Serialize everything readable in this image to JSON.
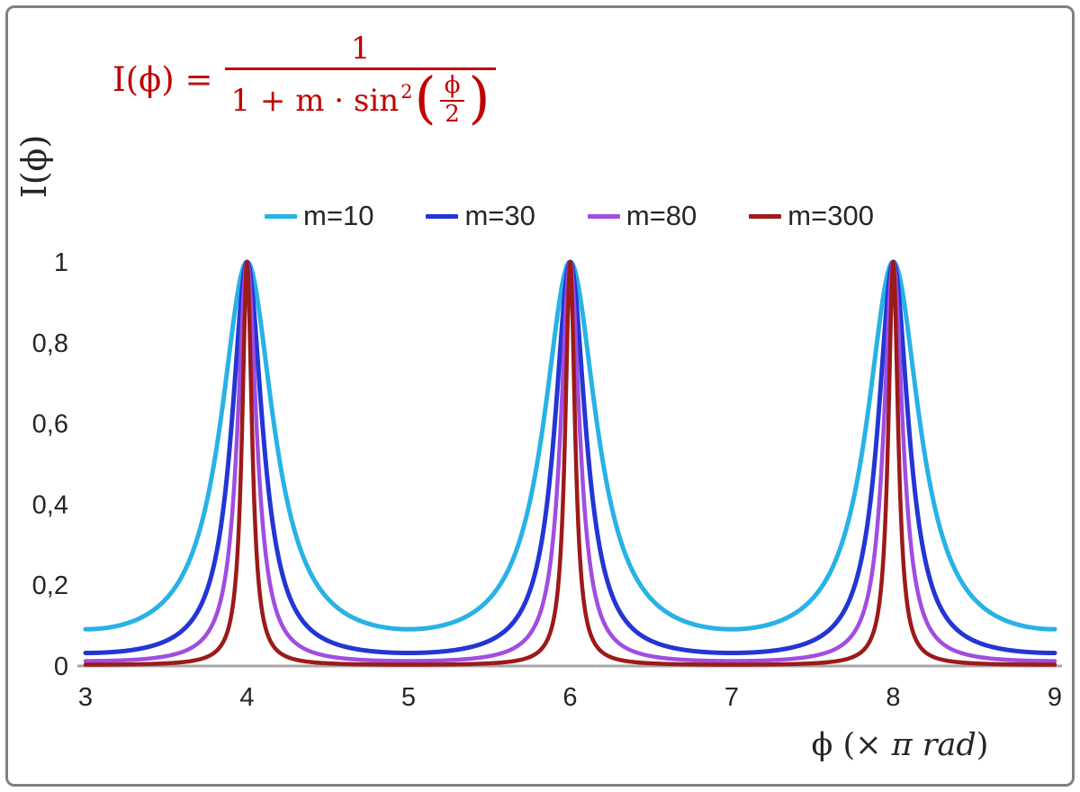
{
  "chart_data": {
    "type": "line",
    "title": "",
    "formula_text": "I(ϕ) = 1 / (1 + m·sin²(ϕ/2))",
    "xlabel": "ϕ (× π rad)",
    "ylabel": "I(ϕ)",
    "x_range": [
      3,
      9
    ],
    "y_range": [
      0,
      1
    ],
    "grid": false,
    "legend_position": "top-center",
    "axis_color": "#a6a6a6",
    "x_ticks": [
      {
        "value": 3,
        "label": "3"
      },
      {
        "value": 4,
        "label": "4"
      },
      {
        "value": 5,
        "label": "5"
      },
      {
        "value": 6,
        "label": "6"
      },
      {
        "value": 7,
        "label": "7"
      },
      {
        "value": 8,
        "label": "8"
      },
      {
        "value": 9,
        "label": "9"
      }
    ],
    "y_ticks": [
      {
        "value": 0,
        "label": "0"
      },
      {
        "value": 0.2,
        "label": "0,2"
      },
      {
        "value": 0.4,
        "label": "0,4"
      },
      {
        "value": 0.6,
        "label": "0,6"
      },
      {
        "value": 0.8,
        "label": "0,8"
      },
      {
        "value": 1,
        "label": "1"
      }
    ],
    "function": "I(x) = 1 / (1 + m * sin(pi*x/2)^2), x in units of pi rad; peaks of value 1 at x = 4, 6, 8",
    "series": [
      {
        "name": "m=10",
        "m": 10,
        "color": "#28b2e6",
        "width": 5
      },
      {
        "name": "m=30",
        "m": 30,
        "color": "#2336d4",
        "width": 5
      },
      {
        "name": "m=80",
        "m": 80,
        "color": "#a04de0",
        "width": 4.5
      },
      {
        "name": "m=300",
        "m": 300,
        "color": "#9c1a1a",
        "width": 4.5
      }
    ]
  },
  "formula": {
    "lhs": "I(ϕ) =",
    "numerator": "1",
    "den_prefix": "1 + m · sin",
    "den_sup": "2",
    "open_paren": "(",
    "inner_num": "ϕ",
    "inner_den": "2",
    "close_paren": ")"
  },
  "axes": {
    "y_title": "I(ϕ)",
    "x_title_prefix": "ϕ  (× ",
    "x_title_italic": "π rad",
    "x_title_suffix": ")"
  }
}
